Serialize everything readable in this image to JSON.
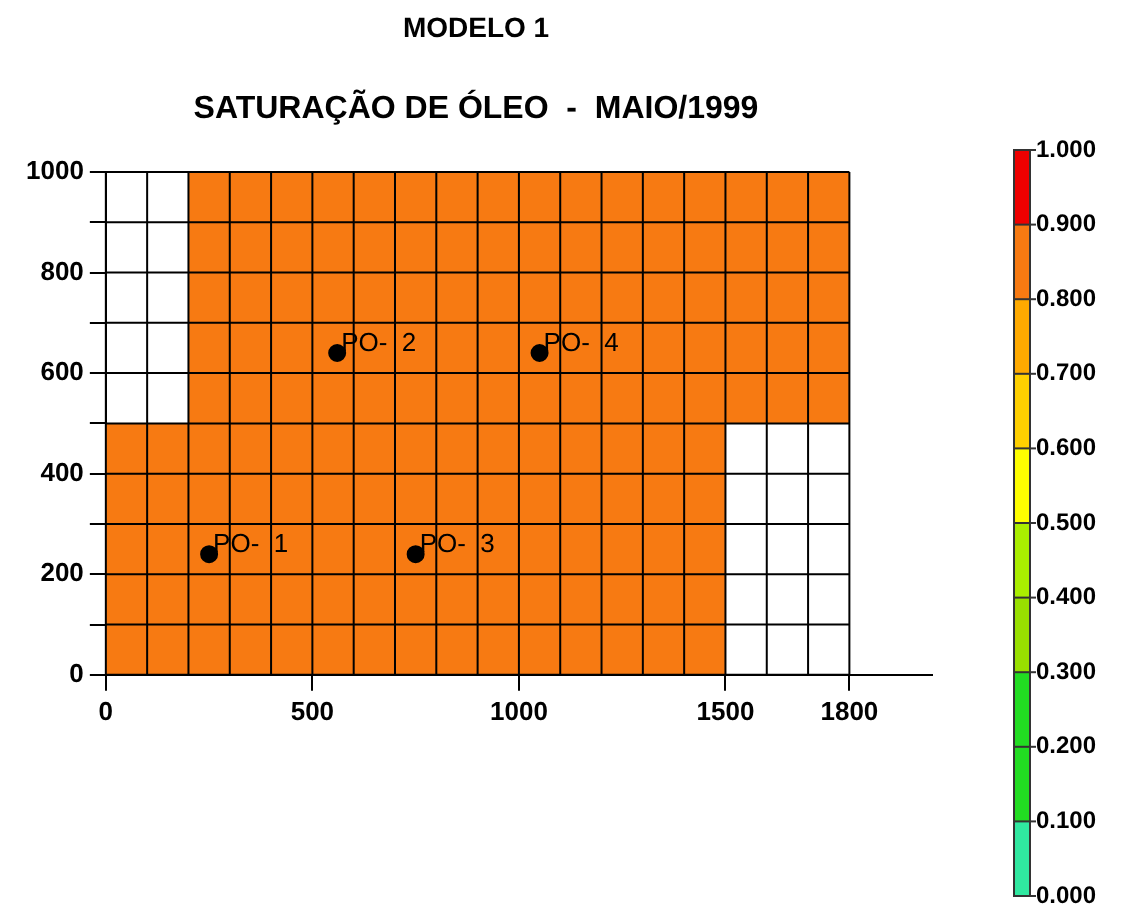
{
  "chart_data": {
    "type": "heatmap",
    "title": "MODELO 1",
    "subtitle": "SATURAÇÃO DE ÓLEO  -  MAIO/1999",
    "x": [
      50,
      150,
      250,
      350,
      450,
      550,
      650,
      750,
      850,
      950,
      1050,
      1150,
      1250,
      1350,
      1450,
      1550,
      1650,
      1750
    ],
    "cells": [
      [
        null,
        null,
        0.85,
        0.85,
        0.85,
        0.85,
        0.85,
        0.85,
        0.85,
        0.85,
        0.85,
        0.85,
        0.85,
        0.85,
        0.85,
        0.85,
        0.85,
        0.85
      ],
      [
        null,
        null,
        0.85,
        0.85,
        0.85,
        0.85,
        0.85,
        0.85,
        0.85,
        0.85,
        0.85,
        0.85,
        0.85,
        0.85,
        0.85,
        0.85,
        0.85,
        0.85
      ],
      [
        null,
        null,
        0.85,
        0.85,
        0.85,
        0.85,
        0.85,
        0.85,
        0.85,
        0.85,
        0.85,
        0.85,
        0.85,
        0.85,
        0.85,
        0.85,
        0.85,
        0.85
      ],
      [
        null,
        null,
        0.85,
        0.85,
        0.85,
        0.85,
        0.85,
        0.85,
        0.85,
        0.85,
        0.85,
        0.85,
        0.85,
        0.85,
        0.85,
        0.85,
        0.85,
        0.85
      ],
      [
        null,
        null,
        0.85,
        0.85,
        0.85,
        0.85,
        0.85,
        0.85,
        0.85,
        0.85,
        0.85,
        0.85,
        0.85,
        0.85,
        0.85,
        0.85,
        0.85,
        0.85
      ],
      [
        0.85,
        0.85,
        0.85,
        0.85,
        0.85,
        0.85,
        0.85,
        0.85,
        0.85,
        0.85,
        0.85,
        0.85,
        0.85,
        0.85,
        0.85,
        null,
        null,
        null
      ],
      [
        0.85,
        0.85,
        0.85,
        0.85,
        0.85,
        0.85,
        0.85,
        0.85,
        0.85,
        0.85,
        0.85,
        0.85,
        0.85,
        0.85,
        0.85,
        null,
        null,
        null
      ],
      [
        0.85,
        0.85,
        0.85,
        0.85,
        0.85,
        0.85,
        0.85,
        0.85,
        0.85,
        0.85,
        0.85,
        0.85,
        0.85,
        0.85,
        0.85,
        null,
        null,
        null
      ],
      [
        0.85,
        0.85,
        0.85,
        0.85,
        0.85,
        0.85,
        0.85,
        0.85,
        0.85,
        0.85,
        0.85,
        0.85,
        0.85,
        0.85,
        0.85,
        null,
        null,
        null
      ],
      [
        0.85,
        0.85,
        0.85,
        0.85,
        0.85,
        0.85,
        0.85,
        0.85,
        0.85,
        0.85,
        0.85,
        0.85,
        0.85,
        0.85,
        0.85,
        null,
        null,
        null
      ]
    ],
    "clim": [
      0,
      1
    ],
    "cticks": [
      {
        "value": 0,
        "label": "0.000"
      },
      {
        "value": 0.1,
        "label": "0.100"
      },
      {
        "value": 0.2,
        "label": "0.200"
      },
      {
        "value": 0.3,
        "label": "0.300"
      },
      {
        "value": 0.4,
        "label": "0.400"
      },
      {
        "value": 0.5,
        "label": "0.500"
      },
      {
        "value": 0.6,
        "label": "0.600"
      },
      {
        "value": 0.7,
        "label": "0.700"
      },
      {
        "value": 0.8,
        "label": "0.800"
      },
      {
        "value": 0.9,
        "label": "0.900"
      },
      {
        "value": 1,
        "label": "1.000"
      }
    ],
    "xlim": [
      0,
      2000
    ],
    "xticks": [
      0,
      500,
      1000,
      1500,
      1800
    ],
    "ylim": [
      0,
      1000
    ],
    "yticks": [
      0,
      {
        "value": 100,
        "label": null
      },
      200,
      {
        "value": 300,
        "label": null
      },
      400,
      {
        "value": 500,
        "label": null
      },
      600,
      {
        "value": 700,
        "label": null
      },
      800,
      {
        "value": 900,
        "label": null
      },
      1000
    ],
    "grid": true,
    "legend": false,
    "marker": "circle",
    "series": [
      {
        "type": "scatter",
        "color": "#000000",
        "x": [
          250,
          560,
          750,
          1050
        ],
        "values": [
          240,
          640,
          240,
          640
        ]
      }
    ],
    "annotations": [
      {
        "text": "PO-  1",
        "x": 250,
        "y": 240
      },
      {
        "text": "PO-  2",
        "x": 560,
        "y": 640
      },
      {
        "text": "PO-  3",
        "x": 750,
        "y": 240
      },
      {
        "text": "PO-  4",
        "x": 1050,
        "y": 640
      }
    ]
  }
}
